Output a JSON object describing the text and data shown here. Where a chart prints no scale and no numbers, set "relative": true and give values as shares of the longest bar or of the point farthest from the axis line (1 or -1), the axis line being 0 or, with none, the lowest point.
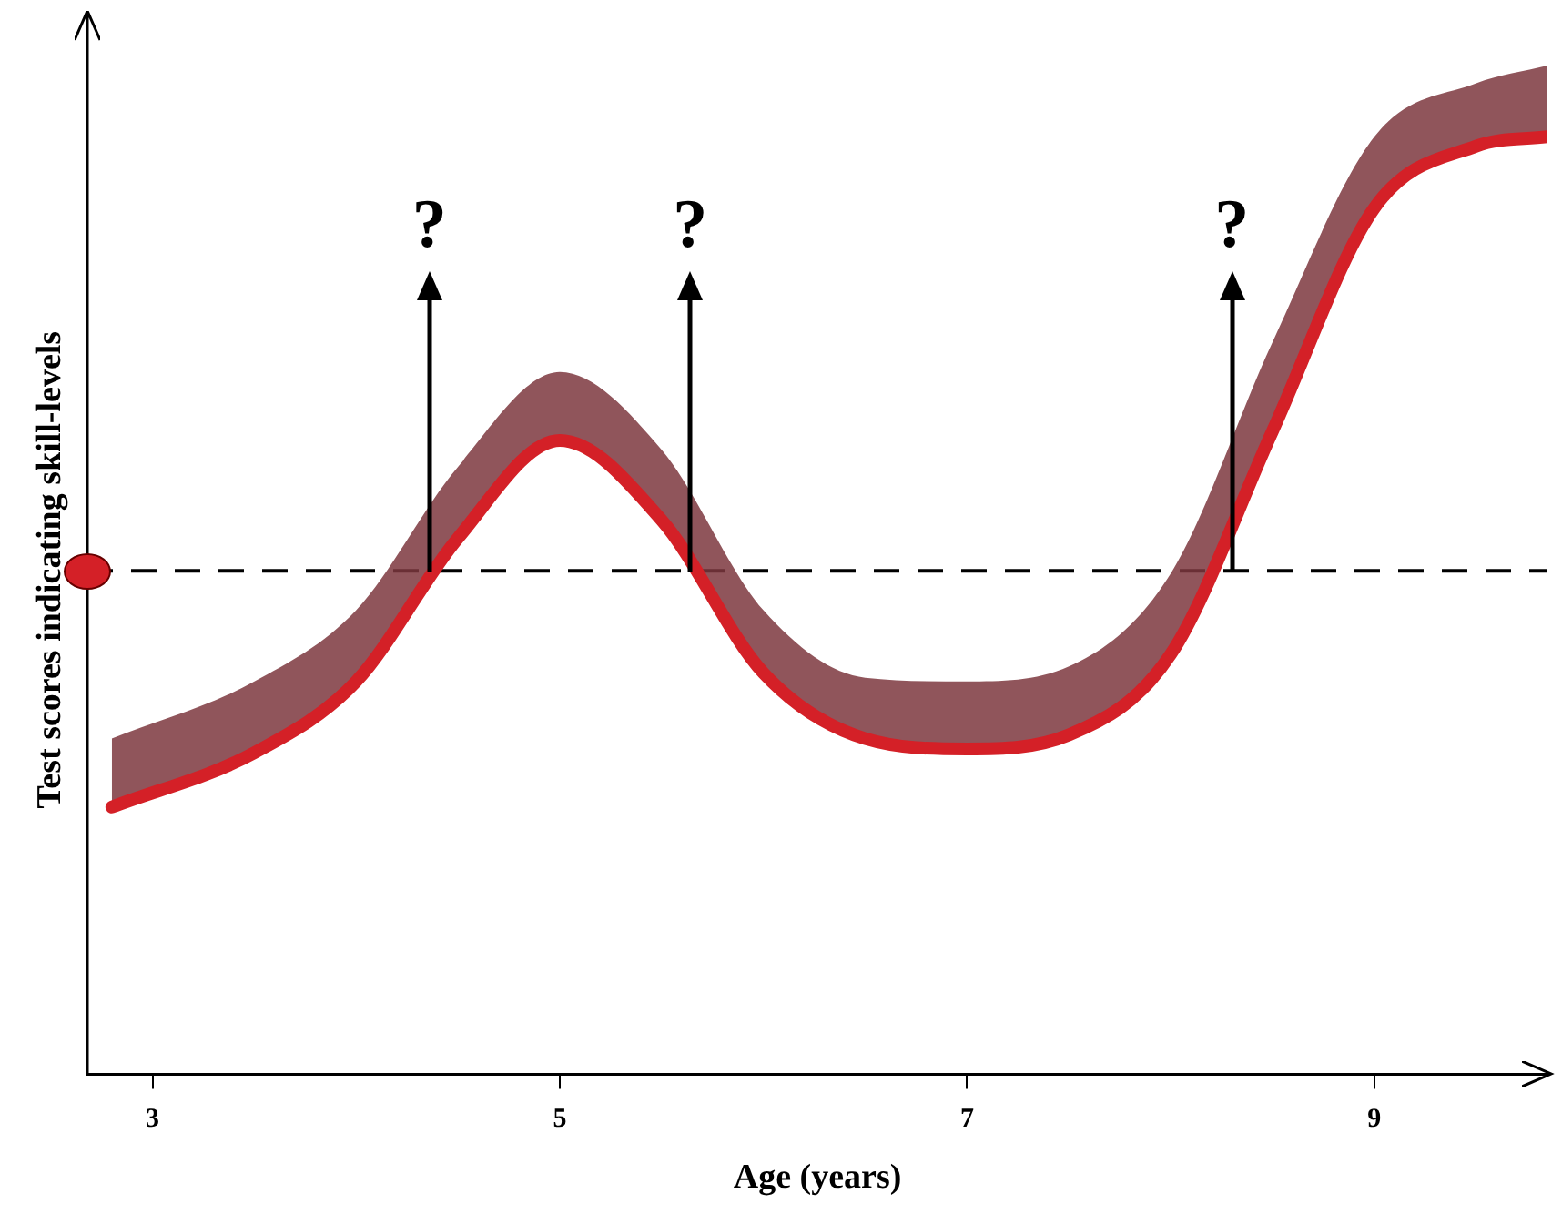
{
  "chart_data": {
    "type": "line",
    "xlabel": "Age (years)",
    "ylabel": "Test scores indicating skill-levels",
    "relative": true,
    "x": [
      2.8,
      3.5,
      4.0,
      4.5,
      5.0,
      5.5,
      6.0,
      6.5,
      7.0,
      7.5,
      8.0,
      8.5,
      9.0,
      9.5,
      9.85
    ],
    "series": [
      {
        "color": "#d42027",
        "line_style": "solid",
        "values": [
          0.285,
          0.343,
          0.419,
          0.572,
          0.676,
          0.591,
          0.428,
          0.358,
          0.347,
          0.362,
          0.448,
          0.686,
          0.924,
          0.99,
          1.0
        ],
        "lower": [
          0.285,
          0.343,
          0.419,
          0.572,
          0.676,
          0.591,
          0.428,
          0.358,
          0.347,
          0.362,
          0.448,
          0.686,
          0.924,
          0.99,
          1.0
        ],
        "upper": [
          0.358,
          0.419,
          0.495,
          0.648,
          0.749,
          0.666,
          0.495,
          0.423,
          0.419,
          0.435,
          0.534,
          0.781,
          1.0,
          1.057,
          1.076
        ]
      }
    ],
    "xlim": [
      2.68,
      9.85
    ],
    "xticks": [
      3,
      5,
      7,
      9
    ],
    "ref_lines": [
      {
        "axis": "y",
        "value": 0.537,
        "color": "#000000",
        "line_style": "dashed"
      }
    ],
    "annotations": [
      {
        "text": "?",
        "x": 4.36,
        "y": 0.537
      },
      {
        "text": "?",
        "x": 5.64,
        "y": 0.537
      },
      {
        "text": "?",
        "x": 8.3,
        "y": 0.537
      }
    ],
    "grid": false,
    "legend": false,
    "marker": "none"
  }
}
